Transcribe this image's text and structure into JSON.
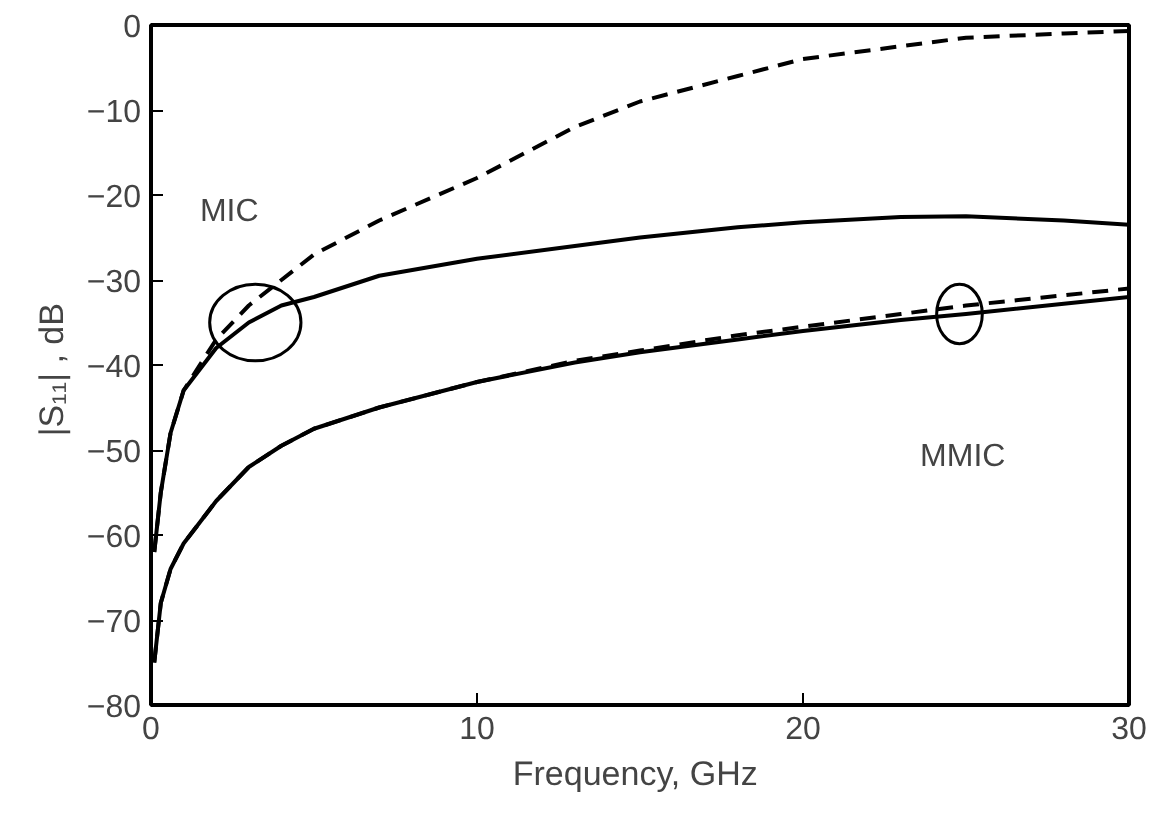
{
  "chart_data": {
    "type": "line",
    "xlabel": "Frequency,  GHz",
    "ylabel": "|S₁₁| ,  dB",
    "xlim": [
      0,
      30
    ],
    "ylim": [
      -80,
      0
    ],
    "xticks": [
      0,
      10,
      20,
      30
    ],
    "yticks": [
      0,
      -10,
      -20,
      -30,
      -40,
      -50,
      -60,
      -70,
      -80
    ],
    "grid": false,
    "annotations": [
      "MIC",
      "MMIC"
    ],
    "series": [
      {
        "color": "#000000",
        "line_style": "dashed",
        "x": [
          0.1,
          0.3,
          0.6,
          1,
          2,
          3,
          4,
          5,
          7,
          10,
          13,
          15,
          18,
          20,
          23,
          25,
          28,
          30
        ],
        "values": [
          -62,
          -55,
          -48,
          -43,
          -37,
          -33,
          -30,
          -27,
          -23,
          -18,
          -12,
          -9,
          -6,
          -4,
          -2.5,
          -1.5,
          -1,
          -0.7
        ]
      },
      {
        "color": "#000000",
        "line_style": "solid",
        "x": [
          0.1,
          0.3,
          0.6,
          1,
          2,
          3,
          4,
          5,
          7,
          10,
          13,
          15,
          18,
          20,
          23,
          25,
          28,
          30
        ],
        "values": [
          -62,
          -55,
          -48,
          -43,
          -38,
          -35,
          -33,
          -32,
          -29.5,
          -27.5,
          -26,
          -25,
          -23.8,
          -23.2,
          -22.6,
          -22.5,
          -23,
          -23.5
        ]
      },
      {
        "color": "#000000",
        "line_style": "dashed",
        "x": [
          0.1,
          0.3,
          0.6,
          1,
          2,
          3,
          4,
          5,
          7,
          10,
          13,
          15,
          18,
          20,
          23,
          25,
          28,
          30
        ],
        "values": [
          -75,
          -68,
          -64,
          -61,
          -56,
          -52,
          -49.5,
          -47.5,
          -45,
          -42,
          -39.5,
          -38.3,
          -36.5,
          -35.5,
          -34,
          -33,
          -31.8,
          -31
        ]
      },
      {
        "color": "#000000",
        "line_style": "solid",
        "x": [
          0.1,
          0.3,
          0.6,
          1,
          2,
          3,
          4,
          5,
          7,
          10,
          13,
          15,
          18,
          20,
          23,
          25,
          28,
          30
        ],
        "values": [
          -75,
          -68,
          -64,
          -61,
          -56,
          -52,
          -49.5,
          -47.5,
          -45,
          -42,
          -39.7,
          -38.5,
          -37,
          -36,
          -34.7,
          -34,
          -32.8,
          -32
        ]
      }
    ]
  }
}
